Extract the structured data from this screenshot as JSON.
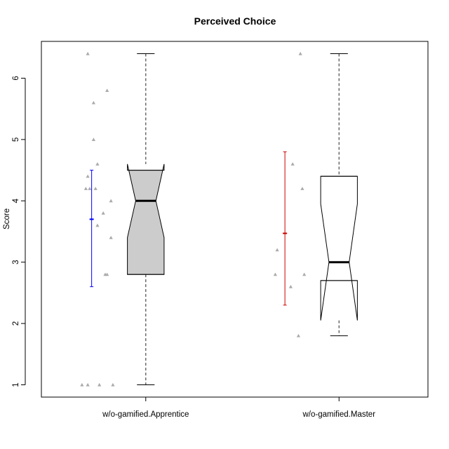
{
  "chart_data": {
    "type": "boxplot",
    "title": "Perceived Choice",
    "xlabel": "",
    "ylabel": "Score",
    "ylim": [
      0.8,
      6.6
    ],
    "y_ticks": [
      1,
      2,
      3,
      4,
      5,
      6
    ],
    "grid": false,
    "notched": true,
    "groups": [
      {
        "label": "w/o-gamified.Apprentice",
        "box_fill": "#cccccc",
        "whisker_low": 1.0,
        "q1": 2.8,
        "median": 4.0,
        "q3": 4.5,
        "whisker_high": 6.4,
        "notch_low": 3.4,
        "notch_high": 4.6,
        "mean": 3.7,
        "mean_ci": [
          2.6,
          4.5
        ],
        "mean_color": "#0000ff",
        "points": [
          {
            "x": -0.3,
            "y": 6.4
          },
          {
            "x": -0.27,
            "y": 5.6
          },
          {
            "x": -0.2,
            "y": 5.8
          },
          {
            "x": -0.27,
            "y": 5.0
          },
          {
            "x": -0.25,
            "y": 4.6
          },
          {
            "x": -0.3,
            "y": 4.4
          },
          {
            "x": -0.31,
            "y": 4.2
          },
          {
            "x": -0.29,
            "y": 4.2
          },
          {
            "x": -0.26,
            "y": 4.2
          },
          {
            "x": -0.18,
            "y": 4.0
          },
          {
            "x": -0.22,
            "y": 3.8
          },
          {
            "x": -0.25,
            "y": 3.6
          },
          {
            "x": -0.18,
            "y": 3.4
          },
          {
            "x": -0.21,
            "y": 2.8
          },
          {
            "x": -0.2,
            "y": 2.8
          },
          {
            "x": -0.33,
            "y": 1.0
          },
          {
            "x": -0.3,
            "y": 1.0
          },
          {
            "x": -0.24,
            "y": 1.0
          },
          {
            "x": -0.17,
            "y": 1.0
          }
        ]
      },
      {
        "label": "w/o-gamified.Master",
        "box_fill": "#ffffff",
        "whisker_low": 1.8,
        "q1": 2.7,
        "median": 3.0,
        "q3": 4.4,
        "whisker_high": 6.4,
        "notch_low": 2.05,
        "notch_high": 3.95,
        "mean": 3.47,
        "mean_ci": [
          2.3,
          4.8
        ],
        "mean_color": "#cc0000",
        "points": [
          {
            "x": -0.2,
            "y": 6.4
          },
          {
            "x": -0.24,
            "y": 4.6
          },
          {
            "x": -0.19,
            "y": 4.2
          },
          {
            "x": -0.32,
            "y": 3.2
          },
          {
            "x": -0.33,
            "y": 2.8
          },
          {
            "x": -0.18,
            "y": 2.8
          },
          {
            "x": -0.25,
            "y": 2.6
          },
          {
            "x": -0.21,
            "y": 1.8
          }
        ]
      }
    ],
    "point_color": "#aaaaaa"
  }
}
